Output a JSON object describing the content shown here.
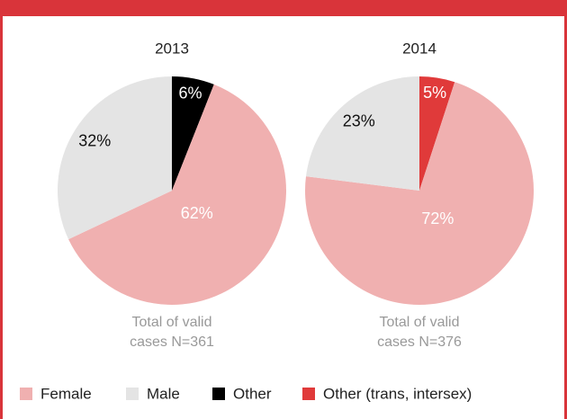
{
  "chart_data": [
    {
      "type": "pie",
      "title": "2013",
      "categories": [
        "Other",
        "Female",
        "Male"
      ],
      "values": [
        6,
        62,
        32
      ],
      "value_labels": [
        "6%",
        "62%",
        "32%"
      ],
      "colors": [
        "#000000",
        "#f0b0b0",
        "#e4e4e4"
      ],
      "label_colors": [
        "#ffffff",
        "#ffffff",
        "#111111"
      ],
      "note_lines": [
        "Total of valid",
        "cases N=361"
      ]
    },
    {
      "type": "pie",
      "title": "2014",
      "categories": [
        "Other (trans, intersex)",
        "Female",
        "Male"
      ],
      "values": [
        5,
        72,
        23
      ],
      "value_labels": [
        "5%",
        "72%",
        "23%"
      ],
      "colors": [
        "#e03a3a",
        "#f0b0b0",
        "#e4e4e4"
      ],
      "label_colors": [
        "#ffffff",
        "#ffffff",
        "#111111"
      ],
      "note_lines": [
        "Total of valid",
        "cases N=376"
      ]
    }
  ],
  "legend": [
    {
      "name": "Female",
      "color": "#f0b0b0"
    },
    {
      "name": "Male",
      "color": "#e4e4e4"
    },
    {
      "name": "Other",
      "color": "#000000"
    },
    {
      "name": "Other (trans, intersex)",
      "color": "#e03a3a"
    }
  ]
}
